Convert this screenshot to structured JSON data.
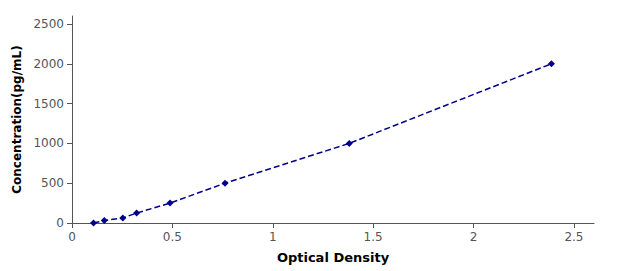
{
  "chart_data": {
    "type": "line",
    "x": [
      0.107,
      0.161,
      0.253,
      0.322,
      0.488,
      0.762,
      1.381,
      2.388
    ],
    "values": [
      0,
      31.25,
      62.5,
      125,
      250,
      500,
      1000,
      2000
    ],
    "color": "#00008B",
    "marker": "diamond",
    "line_style": "dashed",
    "xlabel": "Optical Density",
    "ylabel": "Concentration(pg/mL)",
    "xlim": [
      0.0,
      2.6
    ],
    "ylim": [
      0,
      2600
    ],
    "xticks": [
      0,
      0.5,
      1,
      1.5,
      2,
      2.5
    ],
    "yticks": [
      0,
      500,
      1000,
      1500,
      2000,
      2500
    ],
    "grid": false
  }
}
